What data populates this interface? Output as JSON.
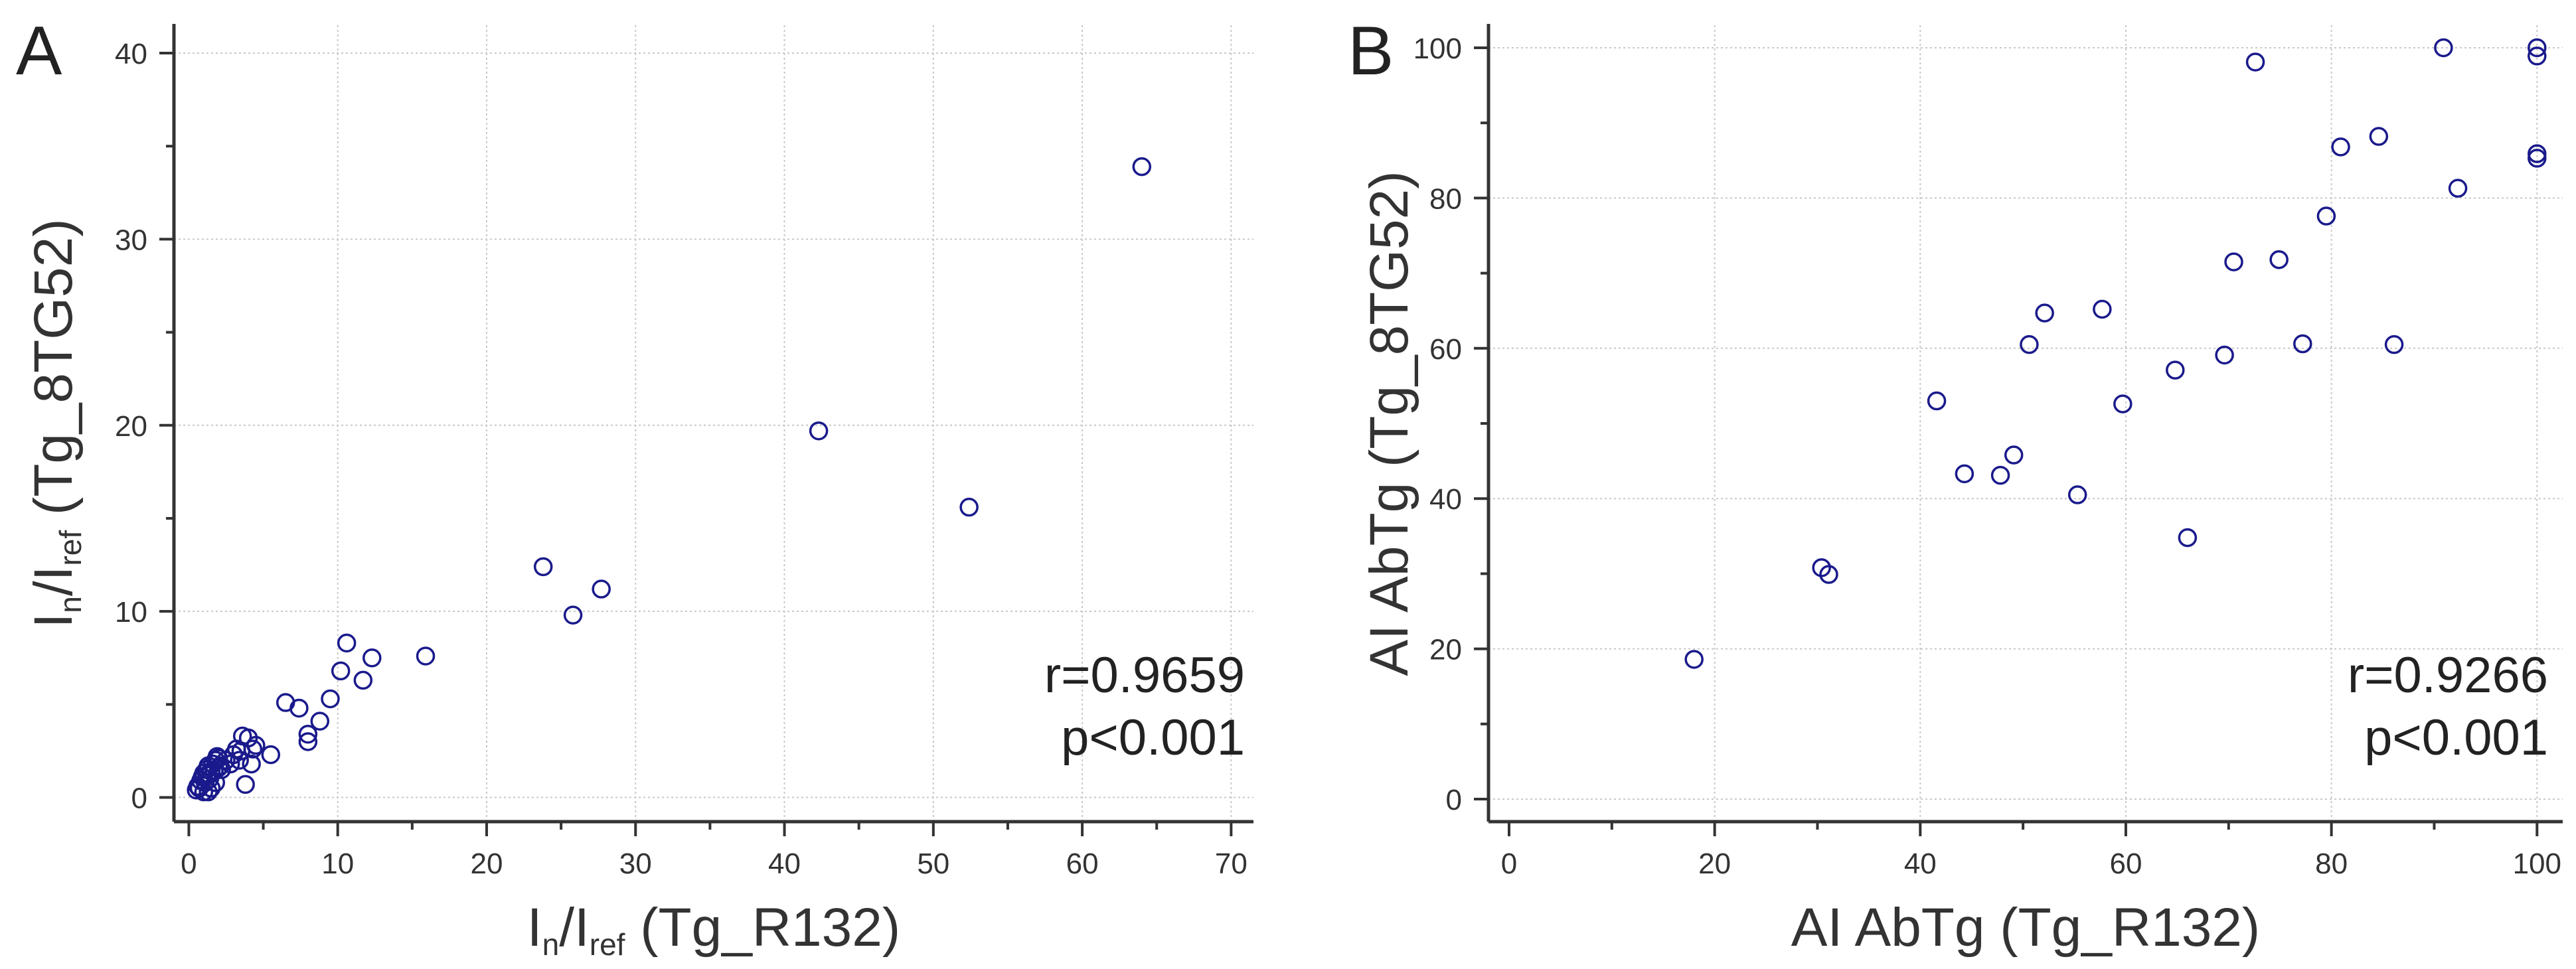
{
  "chart_data": [
    {
      "type": "scatter",
      "panel_label": "A",
      "xlabel": {
        "main": "I",
        "sub1": "n",
        "slash": "/I",
        "sub2": "ref",
        "rest": " (Tg_R132)"
      },
      "ylabel": {
        "main": "I",
        "sub1": "n",
        "slash": "/I",
        "sub2": "ref",
        "rest": " (Tg_8TG52)"
      },
      "xlim": [
        -1,
        71.5
      ],
      "ylim": [
        -1.3,
        41.5
      ],
      "xticks": [
        0,
        10,
        20,
        30,
        40,
        50,
        60,
        70
      ],
      "yticks": [
        0,
        10,
        20,
        30,
        40
      ],
      "grid": true,
      "annotations": [
        "r=0.9659",
        "p<0.001"
      ],
      "marker_color": "#1a1a8c",
      "x": [
        0.5,
        0.6,
        0.7,
        0.8,
        0.9,
        1.0,
        1.0,
        1.1,
        1.2,
        1.2,
        1.3,
        1.3,
        1.4,
        1.5,
        1.5,
        1.6,
        1.7,
        1.8,
        1.8,
        1.9,
        2.0,
        2.0,
        2.1,
        2.2,
        2.5,
        2.8,
        3.0,
        3.2,
        3.4,
        3.5,
        3.6,
        3.8,
        4.0,
        4.2,
        4.3,
        4.5,
        5.5,
        6.5,
        7.4,
        8.0,
        8.0,
        8.8,
        9.5,
        10.2,
        10.6,
        11.7,
        12.3,
        15.9,
        23.8,
        25.8,
        27.7,
        42.3,
        52.4,
        64.0
      ],
      "y": [
        0.4,
        0.6,
        0.5,
        0.9,
        1.1,
        0.3,
        1.3,
        0.8,
        1.2,
        1.5,
        0.3,
        1.7,
        1.0,
        1.4,
        0.5,
        1.8,
        1.4,
        2.0,
        0.8,
        2.2,
        1.6,
        2.1,
        1.7,
        1.5,
        2.0,
        1.8,
        2.3,
        2.6,
        2.0,
        2.5,
        3.3,
        0.7,
        3.2,
        1.8,
        2.6,
        2.8,
        2.3,
        5.1,
        4.8,
        3.0,
        3.4,
        4.1,
        5.3,
        6.8,
        8.3,
        6.3,
        7.5,
        7.6,
        12.4,
        9.8,
        11.2,
        19.7,
        15.6,
        33.9
      ]
    },
    {
      "type": "scatter",
      "panel_label": "B",
      "xlabel": "AI AbTg (Tg_R132)",
      "ylabel": "AI AbTg (Tg_8TG52)",
      "xlim": [
        -2,
        102.5
      ],
      "ylim": [
        -3,
        103
      ],
      "xticks": [
        0,
        20,
        40,
        60,
        80,
        100
      ],
      "yticks": [
        0,
        20,
        40,
        60,
        80,
        100
      ],
      "grid": true,
      "annotations": [
        "r=0.9266",
        "p<0.001"
      ],
      "marker_color": "#1a1a8c",
      "x": [
        18.0,
        30.4,
        31.1,
        41.6,
        44.3,
        47.8,
        49.1,
        50.6,
        52.1,
        55.3,
        57.7,
        59.7,
        64.8,
        66.0,
        69.6,
        70.5,
        72.6,
        74.9,
        77.2,
        79.5,
        80.9,
        84.6,
        86.1,
        90.9,
        92.3,
        100.0,
        100.0,
        100.0,
        100.0
      ],
      "y": [
        18.6,
        30.8,
        29.9,
        53.0,
        43.3,
        43.1,
        45.8,
        60.5,
        64.7,
        40.5,
        65.2,
        52.6,
        57.1,
        34.8,
        59.1,
        71.5,
        98.1,
        71.8,
        60.6,
        77.6,
        86.8,
        88.2,
        60.5,
        100.0,
        81.3,
        100.0,
        98.9,
        85.9,
        85.3
      ]
    }
  ]
}
